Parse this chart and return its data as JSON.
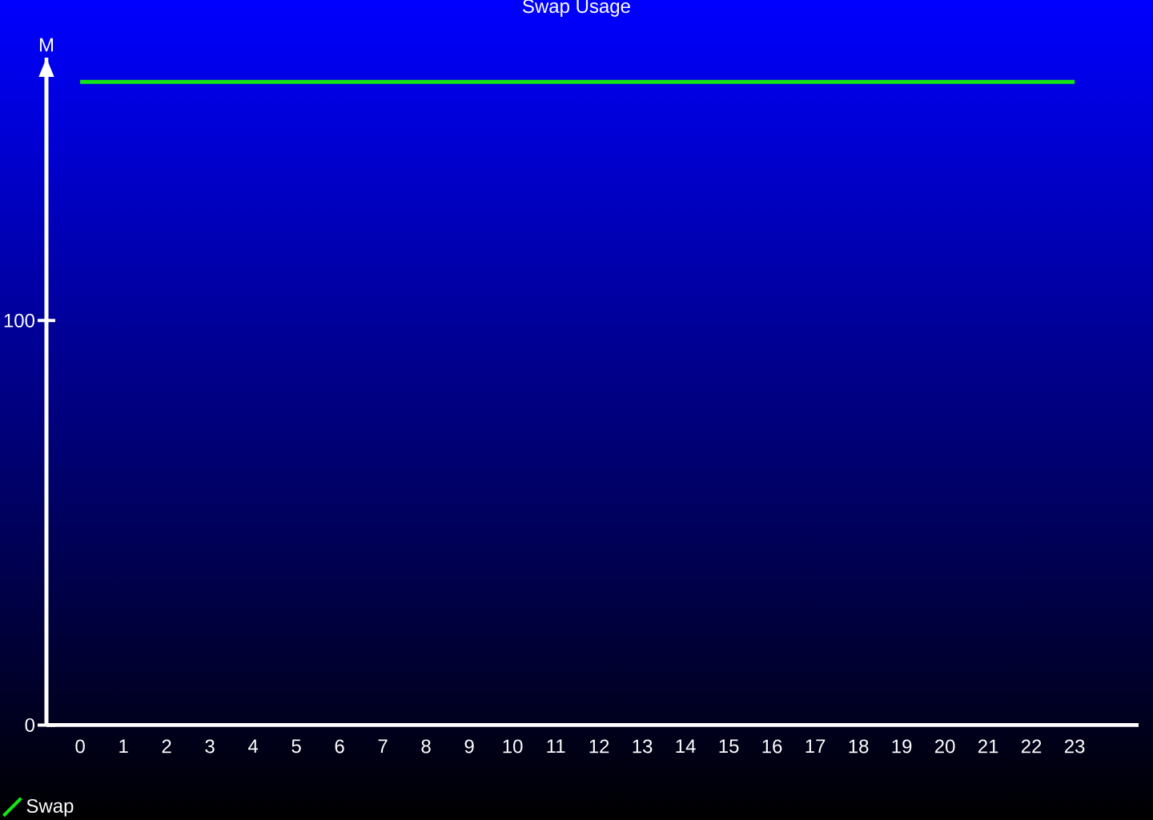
{
  "chart_data": {
    "type": "line",
    "title": "Swap Usage",
    "ylabel": "M",
    "categories": [
      "0",
      "1",
      "2",
      "3",
      "4",
      "5",
      "6",
      "7",
      "8",
      "9",
      "10",
      "11",
      "12",
      "13",
      "14",
      "15",
      "16",
      "17",
      "18",
      "19",
      "20",
      "21",
      "22",
      "23"
    ],
    "series": [
      {
        "name": "Swap",
        "color": "#14e614",
        "values": [
          159,
          159,
          159,
          159,
          159,
          159,
          159,
          159,
          159,
          159,
          159,
          159,
          159,
          159,
          159,
          159,
          159,
          159,
          159,
          159,
          159,
          159,
          159,
          159
        ]
      }
    ],
    "ylim": [
      0,
      165
    ],
    "yticks": [
      0,
      100
    ],
    "legend": "bottom left"
  }
}
